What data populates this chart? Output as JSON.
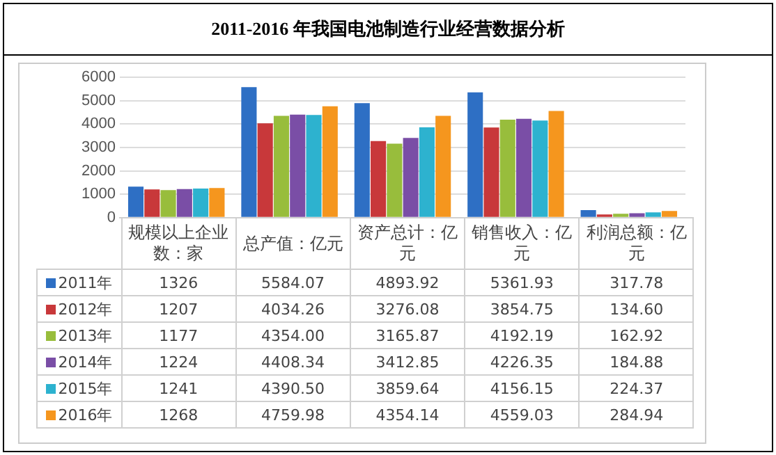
{
  "chart_data": {
    "type": "bar",
    "title": "2011-2016 年我国电池制造行业经营数据分析",
    "categories": [
      "规模以上企业数：家",
      "总产值：亿元",
      "资产总计：亿元",
      "销售收入：亿元",
      "利润总额：亿元"
    ],
    "series": [
      {
        "name": "2011年",
        "color": "#2e6fc4",
        "values": [
          1326,
          5584.07,
          4893.92,
          5361.93,
          317.78
        ],
        "value_labels": [
          "1326",
          "5584.07",
          "4893.92",
          "5361.93",
          "317.78"
        ]
      },
      {
        "name": "2012年",
        "color": "#c8383a",
        "values": [
          1207,
          4034.26,
          3276.08,
          3854.75,
          134.6
        ],
        "value_labels": [
          "1207",
          "4034.26",
          "3276.08",
          "3854.75",
          "134.60"
        ]
      },
      {
        "name": "2013年",
        "color": "#98bd3c",
        "values": [
          1177,
          4354,
          3165.87,
          4192.19,
          162.92
        ],
        "value_labels": [
          "1177",
          "4354.00",
          "3165.87",
          "4192.19",
          "162.92"
        ]
      },
      {
        "name": "2014年",
        "color": "#7a4ea6",
        "values": [
          1224,
          4408.34,
          3412.85,
          4226.35,
          184.88
        ],
        "value_labels": [
          "1224",
          "4408.34",
          "3412.85",
          "4226.35",
          "184.88"
        ]
      },
      {
        "name": "2015年",
        "color": "#2db2cf",
        "values": [
          1241,
          4390.5,
          3859.64,
          4156.15,
          224.37
        ],
        "value_labels": [
          "1241",
          "4390.50",
          "3859.64",
          "4156.15",
          "224.37"
        ]
      },
      {
        "name": "2016年",
        "color": "#f5961e",
        "values": [
          1268,
          4759.98,
          4354.14,
          4559.03,
          284.94
        ],
        "value_labels": [
          "1268",
          "4759.98",
          "4354.14",
          "4559.03",
          "284.94"
        ]
      }
    ],
    "ylim": [
      0,
      6000
    ],
    "yticks": [
      0,
      1000,
      2000,
      3000,
      4000,
      5000,
      6000
    ],
    "grid": "y",
    "legend": "bottom left"
  }
}
